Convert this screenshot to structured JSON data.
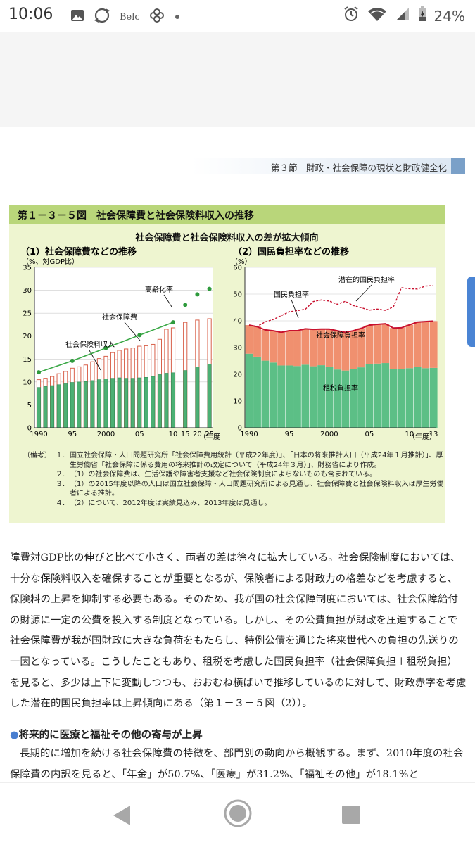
{
  "status_bar": {
    "time": "10:06",
    "carrier_label": "Belc",
    "battery": "24%",
    "icons": [
      "image-icon",
      "refresh-icon",
      "pinwheel-icon",
      "dot-icon",
      "alarm-icon",
      "wifi-icon",
      "signal-icon",
      "battery-icon"
    ]
  },
  "document": {
    "section_header": "第３節　財政・社会保障の現状と財政健全化",
    "figure": {
      "title": "第１－３－５図　社会保障費と社会保険料収入の推移",
      "subtitle": "社会保障費と社会保険料収入の差が拡大傾向",
      "panel1": {
        "title": "（1）社会保障費などの推移",
        "unit_label": "（%、対GDP比）",
        "x_unit": "（年度）",
        "labels": {
          "aging": "高齢化率",
          "social_security": "社会保障費",
          "insurance": "社会保険料収入"
        },
        "y_ticks": [
          "0",
          "5",
          "10",
          "15",
          "20",
          "25",
          "30",
          "35"
        ],
        "x_ticks": [
          "1990",
          "95",
          "2000",
          "05",
          "10",
          "15",
          "20",
          "25"
        ]
      },
      "panel2": {
        "title": "（2）国民負担率などの推移",
        "unit_label": "（%）",
        "x_unit": "（年度）",
        "labels": {
          "potential": "潜在的国民負担率",
          "national": "国民負担率",
          "social_burden": "社会保障負担率",
          "tax_burden": "租税負担率"
        },
        "y_ticks": [
          "0",
          "10",
          "20",
          "30",
          "40",
          "50",
          "60"
        ],
        "x_ticks": [
          "1990",
          "95",
          "2000",
          "05",
          "10",
          "13"
        ]
      },
      "notes_label": "（備考）",
      "notes": [
        {
          "num": "１.",
          "text": "国立社会保障・人口問題研究所「社会保障費用統計（平成22年度）」、「日本の将来推計人口（平成24年１月推計）」、厚生労働省「社会保障に係る費用の将来推計の改定について（平成24年３月）」、財務省により作成。"
        },
        {
          "num": "２.",
          "text": "（1）の社会保障費は、生活保護や障害者支援など社会保険制度によらないものも含まれている。"
        },
        {
          "num": "３.",
          "text": "（1）の2015年度以降の人口は国立社会保障・人口問題研究所による見通し、社会保障費と社会保険料収入は厚生労働者による推計。"
        },
        {
          "num": "４.",
          "text": "（2）について、2012年度は実績見込み、2013年度は見通し。"
        }
      ]
    },
    "paragraph1": "障費対GDP比の伸びと比べて小さく、両者の差は徐々に拡大している。社会保険制度においては、十分な保険料収入を確保することが重要となるが、保険者による財政力の格差などを考慮すると、保険料の上昇を抑制する必要もある。そのため、我が国の社会保障制度においては、社会保障給付の財源に一定の公費を投入する制度となっている。しかし、その公費負担が財政を圧迫することで社会保障費が我が国財政に大きな負荷をもたらし、特例公債を通じた将来世代への負担の先送りの一因となっている。こうしたこともあり、租税を考慮した国民負担率（社会保障負担＋租税負担）を見ると、多少は上下に変動しつつも、おおむね横ばいで推移しているのに対して、財政赤字を考慮した潜在的国民負担率は上昇傾向にある（第１－３－５図（2））。",
    "subheading": "将来的に医療と福祉その他の寄与が上昇",
    "paragraph2": "長期的に増加を続ける社会保障費の特徴を、部門別の動向から概観する。まず、2010年度の社会保障費の内訳を見ると、「年金」が50.7%、「医療」が31.2%、「福祉その他」が18.1%と"
  },
  "chart_data": [
    {
      "type": "bar",
      "title": "（1）社会保障費などの推移",
      "ylabel": "（%、対GDP比）",
      "xlabel": "（年度）",
      "ylim": [
        0,
        35
      ],
      "x": [
        1990,
        1991,
        1992,
        1993,
        1994,
        1995,
        1996,
        1997,
        1998,
        1999,
        2000,
        2001,
        2002,
        2003,
        2004,
        2005,
        2006,
        2007,
        2008,
        2009,
        2010,
        2015,
        2020,
        2025
      ],
      "series": [
        {
          "name": "社会保障費",
          "values": [
            10.5,
            10.8,
            11.2,
            11.8,
            12.3,
            13.0,
            13.3,
            13.7,
            14.4,
            15.1,
            15.6,
            16.4,
            16.9,
            17.2,
            17.4,
            17.8,
            17.9,
            18.2,
            19.3,
            21.5,
            21.8,
            23.0,
            23.5,
            23.8
          ]
        },
        {
          "name": "社会保険料収入",
          "values": [
            8.8,
            9.0,
            9.2,
            9.4,
            9.6,
            9.9,
            10.0,
            10.1,
            10.3,
            10.5,
            10.7,
            10.8,
            10.9,
            10.8,
            10.8,
            10.9,
            11.0,
            11.2,
            11.6,
            11.9,
            12.0,
            12.5,
            13.3,
            13.9
          ]
        },
        {
          "name": "高齢化率",
          "x": [
            1990,
            1995,
            2000,
            2005,
            2010,
            2015,
            2020,
            2025
          ],
          "values": [
            12.1,
            14.6,
            17.4,
            20.2,
            23.0,
            26.8,
            29.1,
            30.3
          ]
        }
      ]
    },
    {
      "type": "bar",
      "title": "（2）国民負担率などの推移",
      "ylabel": "（%）",
      "xlabel": "（年度）",
      "ylim": [
        0,
        60
      ],
      "x": [
        1990,
        1991,
        1992,
        1993,
        1994,
        1995,
        1996,
        1997,
        1998,
        1999,
        2000,
        2001,
        2002,
        2003,
        2004,
        2005,
        2006,
        2007,
        2008,
        2009,
        2010,
        2011,
        2012,
        2013
      ],
      "series": [
        {
          "name": "租税負担率",
          "values": [
            27.7,
            26.6,
            25.1,
            24.4,
            23.3,
            23.3,
            23.1,
            23.6,
            23.0,
            23.4,
            22.9,
            21.8,
            21.4,
            21.9,
            22.6,
            23.8,
            24.0,
            24.2,
            21.9,
            21.9,
            22.3,
            22.7,
            22.3,
            22.4
          ]
        },
        {
          "name": "社会保障負担率",
          "values": [
            10.7,
            11.2,
            11.5,
            11.9,
            12.4,
            13.0,
            13.2,
            13.4,
            13.8,
            13.5,
            14.0,
            14.5,
            14.3,
            14.4,
            14.6,
            14.6,
            14.7,
            14.7,
            15.4,
            15.5,
            16.2,
            16.8,
            17.4,
            17.5
          ]
        },
        {
          "name": "国民負担率",
          "values": [
            38.4,
            37.8,
            36.6,
            36.3,
            35.7,
            36.3,
            36.3,
            37.0,
            36.8,
            36.9,
            36.9,
            36.3,
            35.7,
            36.3,
            37.2,
            38.4,
            38.7,
            38.9,
            37.3,
            37.4,
            38.5,
            39.5,
            39.7,
            39.9
          ]
        },
        {
          "name": "潜在的国民負担率",
          "values": [
            38.4,
            37.9,
            39.6,
            40.5,
            41.9,
            43.4,
            43.8,
            44.3,
            47.2,
            47.8,
            47.4,
            46.2,
            47.3,
            45.7,
            44.9,
            44.0,
            44.4,
            43.9,
            45.2,
            52.4,
            52.0,
            51.9,
            53.0,
            53.2
          ]
        }
      ]
    }
  ],
  "nav": {
    "icons": [
      "back-icon",
      "home-icon",
      "recents-icon"
    ]
  }
}
